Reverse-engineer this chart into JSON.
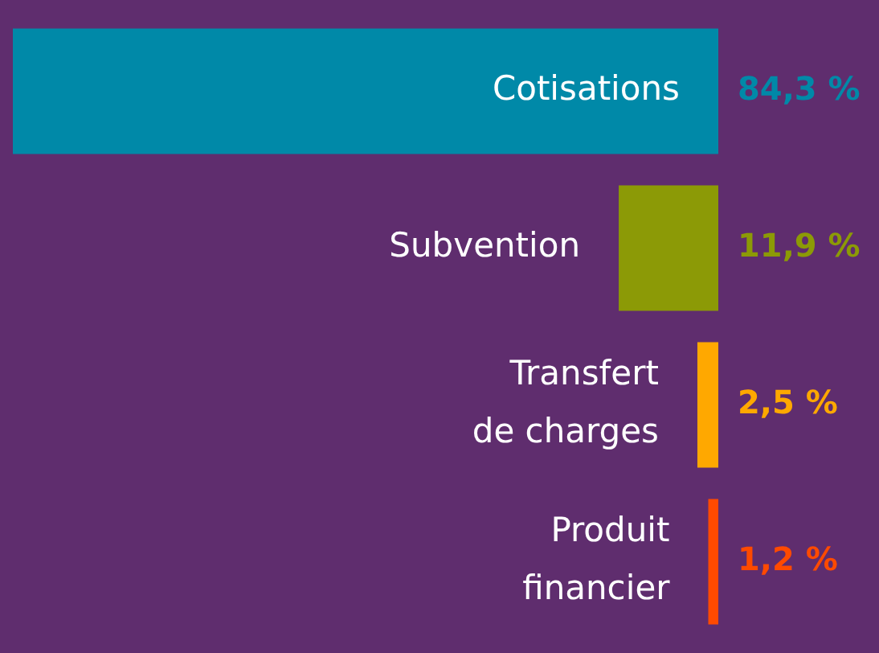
{
  "chart_data": {
    "type": "bar",
    "orientation": "horizontal",
    "categories": [
      "Cotisations",
      "Subvention",
      "Transfert de charges",
      "Produit financier"
    ],
    "values": [
      84.3,
      11.9,
      2.5,
      1.2
    ],
    "colors": [
      "#0089a8",
      "#8c9a06",
      "#ffa800",
      "#ff4a00"
    ],
    "value_labels": [
      "84,3 %",
      "11,9 %",
      "2,5 %",
      "1,2 %"
    ],
    "legend": false,
    "tick_labels": false
  }
}
